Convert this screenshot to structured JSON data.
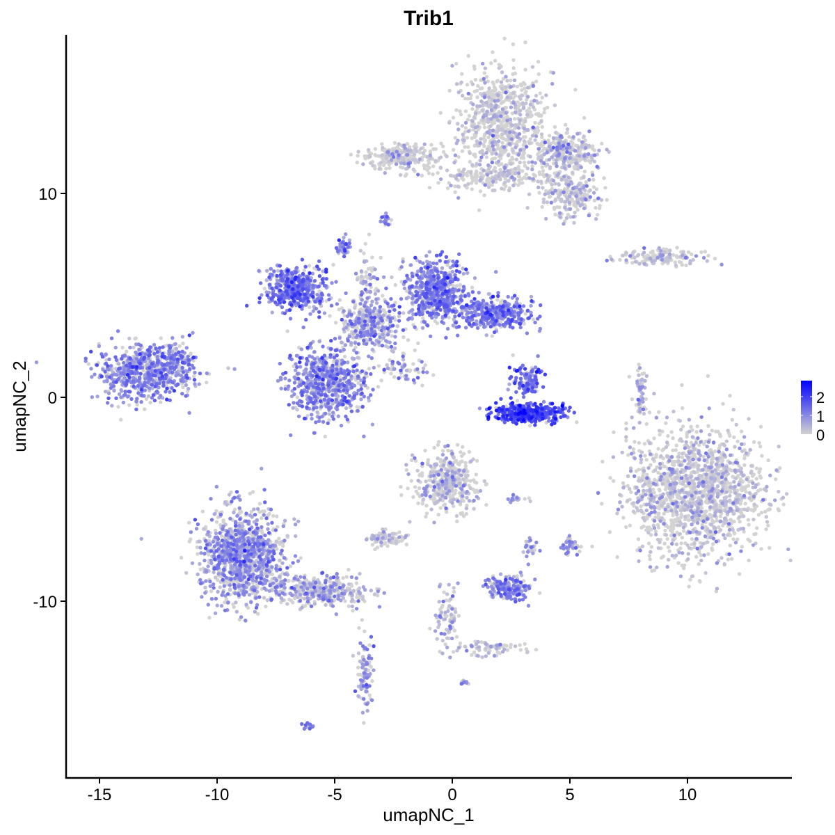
{
  "chart_data": {
    "type": "scatter",
    "title": "Trib1",
    "xlabel": "umapNC_1",
    "ylabel": "umapNC_2",
    "xlim": [
      -16.4,
      14.4
    ],
    "ylim": [
      -18.7,
      17.8
    ],
    "xticks": [
      -15,
      -10,
      -5,
      0,
      5,
      10
    ],
    "yticks": [
      -10,
      0,
      10
    ],
    "grid": false,
    "legend": "right",
    "color_scale": {
      "low": "#D3D3D3",
      "high": "#0000FF",
      "min": 0,
      "max": 2.85,
      "ticks": [
        0,
        1,
        2
      ]
    },
    "clusters": [
      {
        "cx": 2.07,
        "cy": 13.5,
        "sx": 1.2,
        "sy": 1.7,
        "n": 700,
        "expr": 0.2
      },
      {
        "cx": 4.7,
        "cy": 12.0,
        "sx": 1.0,
        "sy": 0.7,
        "n": 300,
        "expr": 0.45
      },
      {
        "cx": 5.0,
        "cy": 9.9,
        "sx": 0.8,
        "sy": 0.7,
        "n": 220,
        "expr": 0.3
      },
      {
        "cx": -2.1,
        "cy": 11.8,
        "sx": 1.2,
        "sy": 0.45,
        "n": 250,
        "expr": 0.15
      },
      {
        "cx": 1.6,
        "cy": 10.8,
        "sx": 1.6,
        "sy": 0.4,
        "n": 180,
        "expr": 0.15
      },
      {
        "cx": -2.8,
        "cy": 8.7,
        "sx": 0.15,
        "sy": 0.2,
        "n": 20,
        "expr": 0.9
      },
      {
        "cx": -6.65,
        "cy": 5.4,
        "sx": 0.9,
        "sy": 0.7,
        "n": 450,
        "expr": 1.2
      },
      {
        "cx": -5.3,
        "cy": 0.7,
        "sx": 1.1,
        "sy": 1.2,
        "n": 650,
        "expr": 1.0
      },
      {
        "cx": -3.5,
        "cy": 3.6,
        "sx": 0.9,
        "sy": 0.8,
        "n": 350,
        "expr": 0.8
      },
      {
        "cx": -0.7,
        "cy": 5.2,
        "sx": 0.9,
        "sy": 1.0,
        "n": 550,
        "expr": 1.1
      },
      {
        "cx": 1.8,
        "cy": 4.1,
        "sx": 1.1,
        "sy": 0.5,
        "n": 350,
        "expr": 1.1
      },
      {
        "cx": -4.6,
        "cy": 7.4,
        "sx": 0.2,
        "sy": 0.3,
        "n": 40,
        "expr": 1.2
      },
      {
        "cx": -3.6,
        "cy": 5.8,
        "sx": 0.3,
        "sy": 1.0,
        "n": 60,
        "expr": 0.6
      },
      {
        "cx": -2.0,
        "cy": 1.4,
        "sx": 0.9,
        "sy": 0.5,
        "n": 60,
        "expr": 0.8
      },
      {
        "cx": -13.0,
        "cy": 1.2,
        "sx": 1.3,
        "sy": 0.9,
        "n": 650,
        "expr": 1.0
      },
      {
        "cx": -11.7,
        "cy": 1.8,
        "sx": 0.5,
        "sy": 0.5,
        "n": 80,
        "expr": 0.9
      },
      {
        "cx": 3.25,
        "cy": -0.75,
        "sx": 1.0,
        "sy": 0.3,
        "n": 400,
        "expr": 1.8
      },
      {
        "cx": 3.2,
        "cy": 0.8,
        "sx": 0.4,
        "sy": 0.6,
        "n": 120,
        "expr": 1.3
      },
      {
        "cx": 10.35,
        "cy": -4.6,
        "sx": 1.9,
        "sy": 2.1,
        "n": 1500,
        "expr": 0.3
      },
      {
        "cx": 8.8,
        "cy": 6.9,
        "sx": 1.3,
        "sy": 0.25,
        "n": 140,
        "expr": 0.3
      },
      {
        "cx": 8.0,
        "cy": 0.2,
        "sx": 0.2,
        "sy": 0.8,
        "n": 60,
        "expr": 0.6
      },
      {
        "cx": -8.9,
        "cy": -7.8,
        "sx": 1.2,
        "sy": 1.5,
        "n": 1100,
        "expr": 0.8
      },
      {
        "cx": -5.6,
        "cy": -9.5,
        "sx": 1.4,
        "sy": 0.5,
        "n": 350,
        "expr": 0.6
      },
      {
        "cx": -3.7,
        "cy": -13.5,
        "sx": 0.25,
        "sy": 1.2,
        "n": 90,
        "expr": 0.8
      },
      {
        "cx": -0.3,
        "cy": -4.1,
        "sx": 0.9,
        "sy": 1.0,
        "n": 400,
        "expr": 0.35
      },
      {
        "cx": -2.8,
        "cy": -6.9,
        "sx": 0.5,
        "sy": 0.3,
        "n": 80,
        "expr": 0.35
      },
      {
        "cx": 2.4,
        "cy": -9.35,
        "sx": 0.6,
        "sy": 0.4,
        "n": 180,
        "expr": 1.0
      },
      {
        "cx": -0.3,
        "cy": -11.0,
        "sx": 0.35,
        "sy": 1.0,
        "n": 80,
        "expr": 0.5
      },
      {
        "cx": 1.6,
        "cy": -12.3,
        "sx": 1.0,
        "sy": 0.25,
        "n": 70,
        "expr": 0.4
      },
      {
        "cx": 5.0,
        "cy": -7.3,
        "sx": 0.3,
        "sy": 0.3,
        "n": 40,
        "expr": 0.6
      },
      {
        "cx": 3.3,
        "cy": -7.4,
        "sx": 0.2,
        "sy": 0.4,
        "n": 25,
        "expr": 0.6
      },
      {
        "cx": 2.7,
        "cy": -5.0,
        "sx": 0.3,
        "sy": 0.1,
        "n": 20,
        "expr": 0.7
      },
      {
        "cx": -6.1,
        "cy": -16.1,
        "sx": 0.15,
        "sy": 0.1,
        "n": 12,
        "expr": 1.0
      },
      {
        "cx": 0.5,
        "cy": -14.0,
        "sx": 0.1,
        "sy": 0.1,
        "n": 10,
        "expr": 1.0
      }
    ]
  }
}
